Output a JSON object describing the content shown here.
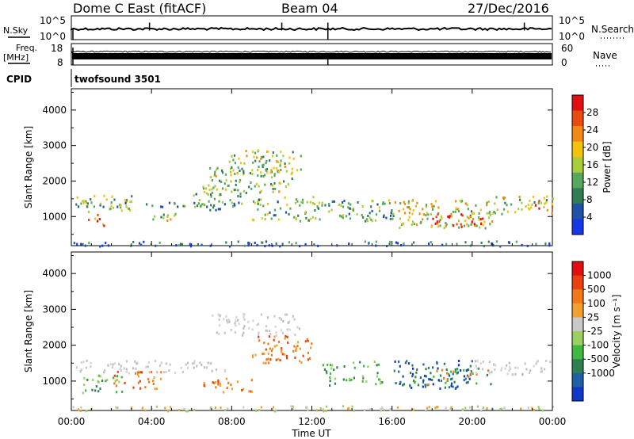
{
  "header": {
    "station": "Dome C East (fitACF)",
    "beam": "Beam 04",
    "date": "27/Dec/2016"
  },
  "left_labels": {
    "nsky": "N.Sky",
    "freq": "Freq.",
    "mhz": "[MHz]",
    "cpid": "CPID"
  },
  "right_labels": {
    "nsearch": "N.Search",
    "nave": "Nave"
  },
  "cpid_value": "twofsound 3501",
  "chart_data": [
    {
      "type": "line",
      "panel": "noise",
      "series": [
        {
          "name": "N.Sky",
          "style": "solid"
        },
        {
          "name": "N.Search",
          "style": "dotted"
        }
      ],
      "ylim_labels": [
        "10^0",
        "10^5"
      ],
      "right_ylim_labels": [
        "10^0",
        "10^5"
      ],
      "x": [
        0,
        4,
        8,
        12,
        16,
        20,
        24
      ],
      "level_fraction": [
        0.45,
        0.45,
        0.45,
        0.45,
        0.45,
        0.45,
        0.45
      ]
    },
    {
      "type": "line",
      "panel": "frequency",
      "series": [
        {
          "name": "Freq.",
          "style": "solid"
        },
        {
          "name": "Nave",
          "style": "dotted"
        }
      ],
      "yticks": [
        8,
        18
      ],
      "right_yticks": [
        0,
        60
      ]
    },
    {
      "type": "heatmap",
      "panel": "power",
      "xlabel": "",
      "ylabel": "Slant Range [km]",
      "xlim": [
        0,
        24
      ],
      "ylim": [
        180,
        4600
      ],
      "yticks": [
        1000,
        2000,
        3000,
        4000
      ],
      "colorbar": {
        "label": "Power [dB]",
        "ticks": [
          4,
          8,
          12,
          16,
          20,
          24,
          28
        ],
        "range": [
          0,
          32
        ],
        "colors": [
          "#1438e8",
          "#2050a8",
          "#2e7d54",
          "#55a85c",
          "#a8cc3a",
          "#f2c20c",
          "#f08a10",
          "#e84a10",
          "#e01010"
        ]
      },
      "blobs": [
        {
          "t": [
            0.2,
            3.0
          ],
          "r": [
            1150,
            1620
          ],
          "level": 0.45
        },
        {
          "t": [
            0.5,
            1.8
          ],
          "r": [
            700,
            1100
          ],
          "level": 0.8
        },
        {
          "t": [
            0.2,
            8.5
          ],
          "r": [
            1300,
            1420
          ],
          "level": 0.3
        },
        {
          "t": [
            4.0,
            5.2
          ],
          "r": [
            900,
            1150
          ],
          "level": 0.5
        },
        {
          "t": [
            6.0,
            8.5
          ],
          "r": [
            1200,
            1700
          ],
          "level": 0.35
        },
        {
          "t": [
            6.5,
            11.0
          ],
          "r": [
            1700,
            2400
          ],
          "level": 0.45
        },
        {
          "t": [
            7.5,
            11.5
          ],
          "r": [
            2200,
            2900
          ],
          "level": 0.5
        },
        {
          "t": [
            9.0,
            12.5
          ],
          "r": [
            900,
            1600
          ],
          "level": 0.4
        },
        {
          "t": [
            12.5,
            16.0
          ],
          "r": [
            900,
            1500
          ],
          "level": 0.35
        },
        {
          "t": [
            16.0,
            21.0
          ],
          "r": [
            700,
            1500
          ],
          "level": 0.55
        },
        {
          "t": [
            18.0,
            20.5
          ],
          "r": [
            700,
            1100
          ],
          "level": 0.85
        },
        {
          "t": [
            20.5,
            24.0
          ],
          "r": [
            1100,
            1600
          ],
          "level": 0.5
        },
        {
          "t": [
            22.5,
            24.0
          ],
          "r": [
            1200,
            1500
          ],
          "level": 0.85
        },
        {
          "t": [
            0.0,
            24.0
          ],
          "r": [
            190,
            330
          ],
          "level": 0.2
        }
      ]
    },
    {
      "type": "heatmap",
      "panel": "velocity",
      "xlabel": "Time UT",
      "ylabel": "Slant Range [km]",
      "xlim": [
        0,
        24
      ],
      "ylim": [
        180,
        4600
      ],
      "yticks": [
        1000,
        2000,
        3000,
        4000
      ],
      "xticks": [
        "00:00",
        "04:00",
        "08:00",
        "12:00",
        "16:00",
        "20:00",
        "00:00"
      ],
      "colorbar": {
        "label": "Velocity [m s⁻¹]",
        "ticks": [
          "1000",
          "500",
          "100",
          "25",
          "-25",
          "-100",
          "-500",
          "-1000"
        ],
        "colors": [
          "#1038c8",
          "#2060a8",
          "#2e8050",
          "#40b840",
          "#9ad060",
          "#c8c8c8",
          "#f0a030",
          "#f07818",
          "#e84010",
          "#e01010"
        ]
      },
      "blobs": [
        {
          "t": [
            0.2,
            8.0
          ],
          "r": [
            1250,
            1600
          ],
          "level": "grey"
        },
        {
          "t": [
            0.5,
            2.5
          ],
          "r": [
            700,
            1200
          ],
          "level": "green"
        },
        {
          "t": [
            2.0,
            4.5
          ],
          "r": [
            800,
            1300
          ],
          "level": "orange"
        },
        {
          "t": [
            6.5,
            9.0
          ],
          "r": [
            700,
            1100
          ],
          "level": "orange"
        },
        {
          "t": [
            7.0,
            11.5
          ],
          "r": [
            2300,
            2900
          ],
          "level": "grey"
        },
        {
          "t": [
            9.0,
            12.0
          ],
          "r": [
            1500,
            2300
          ],
          "level": "orange"
        },
        {
          "t": [
            12.5,
            15.5
          ],
          "r": [
            900,
            1600
          ],
          "level": "green"
        },
        {
          "t": [
            16.0,
            20.0
          ],
          "r": [
            800,
            1600
          ],
          "level": "blue"
        },
        {
          "t": [
            17.0,
            21.0
          ],
          "r": [
            900,
            1400
          ],
          "level": "darkgreen"
        },
        {
          "t": [
            20.0,
            24.0
          ],
          "r": [
            1200,
            1600
          ],
          "level": "grey"
        },
        {
          "t": [
            0.0,
            24.0
          ],
          "r": [
            190,
            330
          ],
          "level": "lightgreen"
        }
      ]
    }
  ]
}
